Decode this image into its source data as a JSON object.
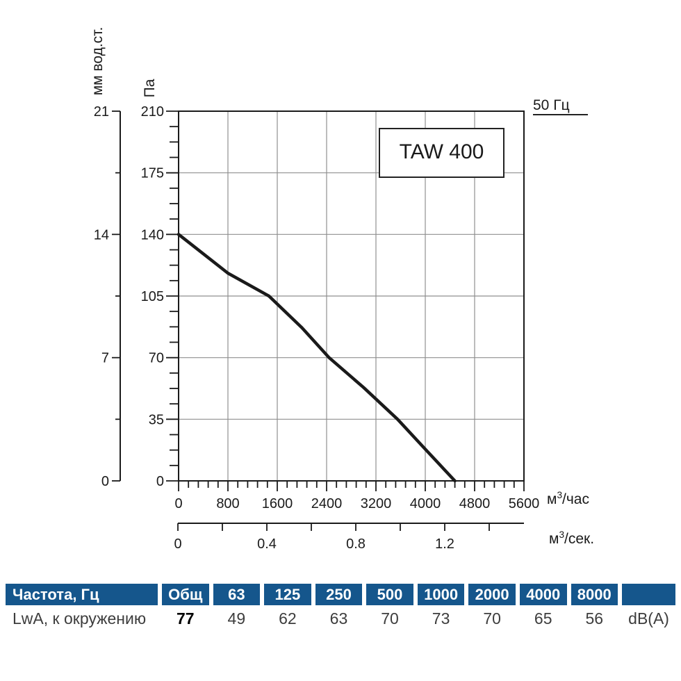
{
  "chart": {
    "model_label": "TAW 400",
    "frequency_label": "50 Гц",
    "axes": {
      "pressure_pa": {
        "title": "Па",
        "ticks": [
          0,
          35,
          70,
          105,
          140,
          175,
          210
        ],
        "minor_step": 8.75,
        "max": 210
      },
      "pressure_mm": {
        "title": "мм вод.ст.",
        "ticks": [
          0,
          7,
          14,
          21
        ],
        "minor_step": 3.5,
        "max": 21
      },
      "flow_m3h": {
        "unit_base": "м",
        "unit_sup": "3",
        "unit_rest": "/час",
        "ticks": [
          0,
          800,
          1600,
          2400,
          3200,
          4000,
          4800,
          5600
        ],
        "minor_step": 160,
        "max": 5600
      },
      "flow_m3s": {
        "unit_base": "м",
        "unit_sup": "3",
        "unit_rest": "/сек.",
        "ticks": [
          0,
          0.2,
          0.4,
          0.6,
          0.8,
          1.0,
          1.2,
          1.4
        ],
        "labeled": [
          0,
          0.4,
          0.8,
          1.2
        ],
        "max": 1.4
      }
    }
  },
  "chart_data": {
    "type": "line",
    "title": "TAW 400",
    "subtitle": "50 Гц",
    "xlabel": "м3/час (second scale: м3/сек.)",
    "ylabel": "Па (second scale: мм вод.ст.)",
    "xlim": [
      0,
      5600
    ],
    "ylim": [
      0,
      210
    ],
    "grid": true,
    "series": [
      {
        "name": "TAW 400, 50 Гц",
        "points": [
          [
            0,
            140
          ],
          [
            800,
            118
          ],
          [
            1465,
            105
          ],
          [
            2000,
            87
          ],
          [
            2440,
            70
          ],
          [
            3000,
            53
          ],
          [
            3550,
            35
          ],
          [
            4000,
            18
          ],
          [
            4480,
            0
          ]
        ],
        "color": "#1a1a1a"
      }
    ]
  },
  "table": {
    "header_bg": "#15568c",
    "header": [
      "Частота, Гц",
      "Общ",
      "63",
      "125",
      "250",
      "500",
      "1000",
      "2000",
      "4000",
      "8000",
      ""
    ],
    "row_label": "LwA, к окружению",
    "values": [
      "77",
      "49",
      "62",
      "63",
      "70",
      "73",
      "70",
      "65",
      "56",
      "dB(A)"
    ]
  }
}
